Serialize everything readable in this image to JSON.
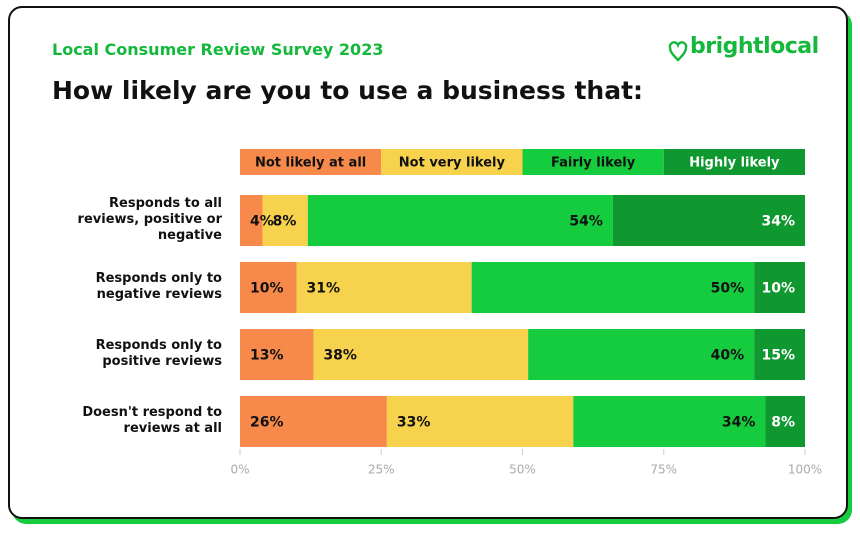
{
  "brand": "brightlocal",
  "chart_data": {
    "type": "stacked-bar-horizontal",
    "subtitle": "Local Consumer Review Survey 2023",
    "title": "How likely are you to use a business that:",
    "categories": [
      "Responds to all reviews, positive or negative",
      "Responds only to negative reviews",
      "Responds only to positive reviews",
      "Doesn't respond to reviews at all"
    ],
    "series": [
      {
        "name": "Not likely at all",
        "color": "#f78a4b",
        "values": [
          4,
          10,
          13,
          26
        ],
        "value_labels": [
          "4%",
          "10%",
          "13%",
          "26%"
        ]
      },
      {
        "name": "Not very likely",
        "color": "#f7d24c",
        "values": [
          8,
          31,
          38,
          33
        ],
        "value_labels": [
          "8%",
          "31%",
          "38%",
          "33%"
        ]
      },
      {
        "name": "Fairly likely",
        "color": "#14cc3e",
        "values": [
          54,
          50,
          40,
          34
        ],
        "value_labels": [
          "54%",
          "50%",
          "40%",
          "34%"
        ]
      },
      {
        "name": "Highly likely",
        "color": "#0f9830",
        "values": [
          34,
          10,
          15,
          8
        ],
        "value_labels": [
          "34%",
          "10%",
          "15%",
          "8%"
        ]
      }
    ],
    "xlim": [
      0,
      100
    ],
    "xticks": [
      {
        "value": 0,
        "label": "0%"
      },
      {
        "value": 25,
        "label": "25%"
      },
      {
        "value": 50,
        "label": "50%"
      },
      {
        "value": 75,
        "label": "75%"
      },
      {
        "value": 100,
        "label": "100%"
      }
    ],
    "legend": "top"
  }
}
